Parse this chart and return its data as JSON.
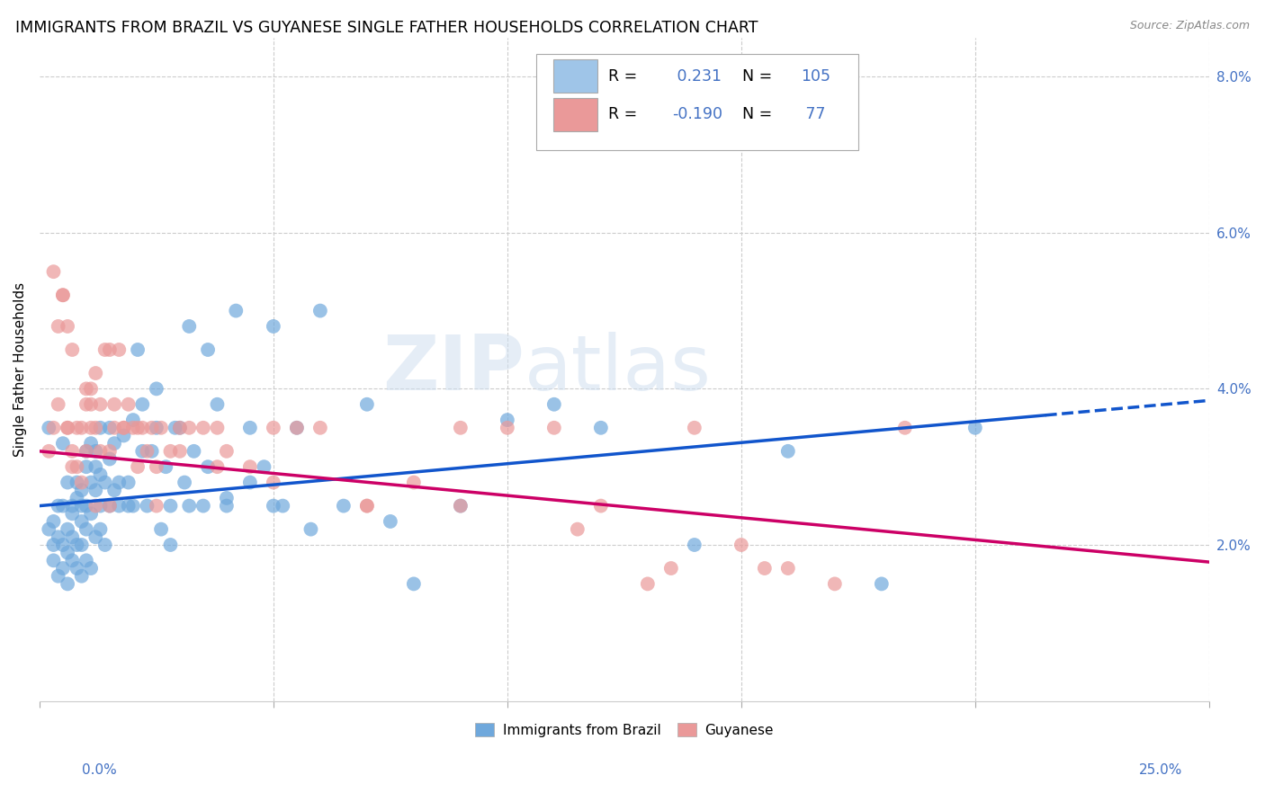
{
  "title": "IMMIGRANTS FROM BRAZIL VS GUYANESE SINGLE FATHER HOUSEHOLDS CORRELATION CHART",
  "source": "Source: ZipAtlas.com",
  "ylabel": "Single Father Households",
  "xlim": [
    0.0,
    25.0
  ],
  "ylim": [
    0.0,
    8.5
  ],
  "yticks": [
    2.0,
    4.0,
    6.0,
    8.0
  ],
  "brazil_color": "#6fa8dc",
  "guyanese_color": "#ea9999",
  "brazil_line_color": "#1155cc",
  "guyanese_line_color": "#cc0066",
  "brazil_R": 0.231,
  "brazil_N": 105,
  "guyanese_R": -0.19,
  "guyanese_N": 77,
  "brazil_line_x0": 0.0,
  "brazil_line_y0": 2.5,
  "brazil_line_x1": 25.0,
  "brazil_line_y1": 3.85,
  "brazil_line_solid_end": 21.5,
  "guyanese_line_x0": 0.0,
  "guyanese_line_y0": 3.2,
  "guyanese_line_x1": 25.0,
  "guyanese_line_y1": 1.78,
  "brazil_scatter_x": [
    0.2,
    0.3,
    0.3,
    0.4,
    0.4,
    0.5,
    0.5,
    0.5,
    0.6,
    0.6,
    0.6,
    0.7,
    0.7,
    0.7,
    0.8,
    0.8,
    0.8,
    0.9,
    0.9,
    0.9,
    0.9,
    1.0,
    1.0,
    1.0,
    1.0,
    1.1,
    1.1,
    1.1,
    1.2,
    1.2,
    1.2,
    1.3,
    1.3,
    1.3,
    1.4,
    1.4,
    1.5,
    1.5,
    1.6,
    1.6,
    1.7,
    1.8,
    1.9,
    2.0,
    2.0,
    2.1,
    2.2,
    2.3,
    2.4,
    2.5,
    2.6,
    2.7,
    2.8,
    2.9,
    3.0,
    3.1,
    3.2,
    3.3,
    3.5,
    3.6,
    3.8,
    4.0,
    4.2,
    4.5,
    4.8,
    5.0,
    5.2,
    5.5,
    6.0,
    6.5,
    7.0,
    8.0,
    9.0,
    10.0,
    11.0,
    12.0,
    14.0,
    16.0,
    18.0,
    20.0,
    0.2,
    0.3,
    0.4,
    0.5,
    0.6,
    0.7,
    0.8,
    0.9,
    1.0,
    1.1,
    1.2,
    1.3,
    1.5,
    1.7,
    1.9,
    2.2,
    2.5,
    2.8,
    3.2,
    3.6,
    4.0,
    4.5,
    5.0,
    5.8,
    7.5
  ],
  "brazil_scatter_y": [
    2.2,
    2.3,
    1.8,
    2.1,
    1.6,
    2.0,
    1.7,
    2.5,
    1.9,
    2.2,
    1.5,
    2.4,
    1.8,
    2.1,
    2.6,
    2.0,
    1.7,
    2.3,
    2.7,
    2.0,
    1.6,
    3.0,
    2.5,
    2.2,
    1.8,
    2.8,
    2.4,
    1.7,
    3.2,
    2.7,
    2.1,
    3.5,
    2.9,
    2.2,
    2.8,
    2.0,
    3.1,
    2.5,
    3.3,
    2.7,
    2.5,
    3.4,
    2.8,
    3.6,
    2.5,
    4.5,
    3.8,
    2.5,
    3.2,
    4.0,
    2.2,
    3.0,
    2.5,
    3.5,
    3.5,
    2.8,
    4.8,
    3.2,
    2.5,
    4.5,
    3.8,
    2.6,
    5.0,
    2.8,
    3.0,
    4.8,
    2.5,
    3.5,
    5.0,
    2.5,
    3.8,
    1.5,
    2.5,
    3.6,
    3.8,
    3.5,
    2.0,
    3.2,
    1.5,
    3.5,
    3.5,
    2.0,
    2.5,
    3.3,
    2.8,
    2.5,
    2.8,
    2.5,
    3.2,
    3.3,
    3.0,
    2.5,
    3.5,
    2.8,
    2.5,
    3.2,
    3.5,
    2.0,
    2.5,
    3.0,
    2.5,
    3.5,
    2.5,
    2.2,
    2.3
  ],
  "guyanese_scatter_x": [
    0.2,
    0.3,
    0.4,
    0.5,
    0.6,
    0.6,
    0.7,
    0.7,
    0.8,
    0.9,
    1.0,
    1.0,
    1.1,
    1.1,
    1.2,
    1.2,
    1.3,
    1.3,
    1.4,
    1.5,
    1.5,
    1.6,
    1.6,
    1.7,
    1.8,
    1.9,
    2.0,
    2.1,
    2.2,
    2.3,
    2.4,
    2.5,
    2.6,
    2.8,
    3.0,
    3.2,
    3.5,
    3.8,
    4.0,
    4.5,
    5.0,
    5.5,
    6.0,
    7.0,
    8.0,
    9.0,
    10.0,
    11.0,
    12.0,
    13.0,
    14.0,
    15.0,
    16.0,
    17.0,
    18.5,
    0.4,
    0.6,
    0.8,
    1.0,
    1.2,
    1.5,
    1.8,
    2.1,
    2.5,
    3.0,
    3.8,
    5.0,
    7.0,
    9.0,
    11.5,
    13.5,
    15.5,
    0.3,
    0.5,
    0.7,
    0.9,
    1.1
  ],
  "guyanese_scatter_y": [
    3.2,
    3.5,
    3.8,
    5.2,
    4.8,
    3.5,
    4.5,
    3.2,
    3.5,
    2.8,
    4.0,
    3.2,
    3.5,
    3.8,
    4.2,
    3.5,
    3.8,
    3.2,
    4.5,
    3.2,
    4.5,
    3.8,
    3.5,
    4.5,
    3.5,
    3.8,
    3.5,
    3.5,
    3.5,
    3.2,
    3.5,
    3.0,
    3.5,
    3.2,
    3.5,
    3.5,
    3.5,
    3.5,
    3.2,
    3.0,
    2.8,
    3.5,
    3.5,
    2.5,
    2.8,
    3.5,
    3.5,
    3.5,
    2.5,
    1.5,
    3.5,
    2.0,
    1.7,
    1.5,
    3.5,
    4.8,
    3.5,
    3.0,
    3.8,
    2.5,
    2.5,
    3.5,
    3.0,
    2.5,
    3.2,
    3.0,
    3.5,
    2.5,
    2.5,
    2.2,
    1.7,
    1.7,
    5.5,
    5.2,
    3.0,
    3.5,
    4.0
  ],
  "bg_color": "#ffffff",
  "grid_color": "#cccccc",
  "legend_box_color_1": "#9fc5e8",
  "legend_box_color_2": "#ea9999",
  "blue_text_color": "#4472c4",
  "title_fontsize": 12.5,
  "axis_label_fontsize": 11,
  "tick_fontsize": 11,
  "watermark_zip": "ZIP",
  "watermark_atlas": "atlas"
}
